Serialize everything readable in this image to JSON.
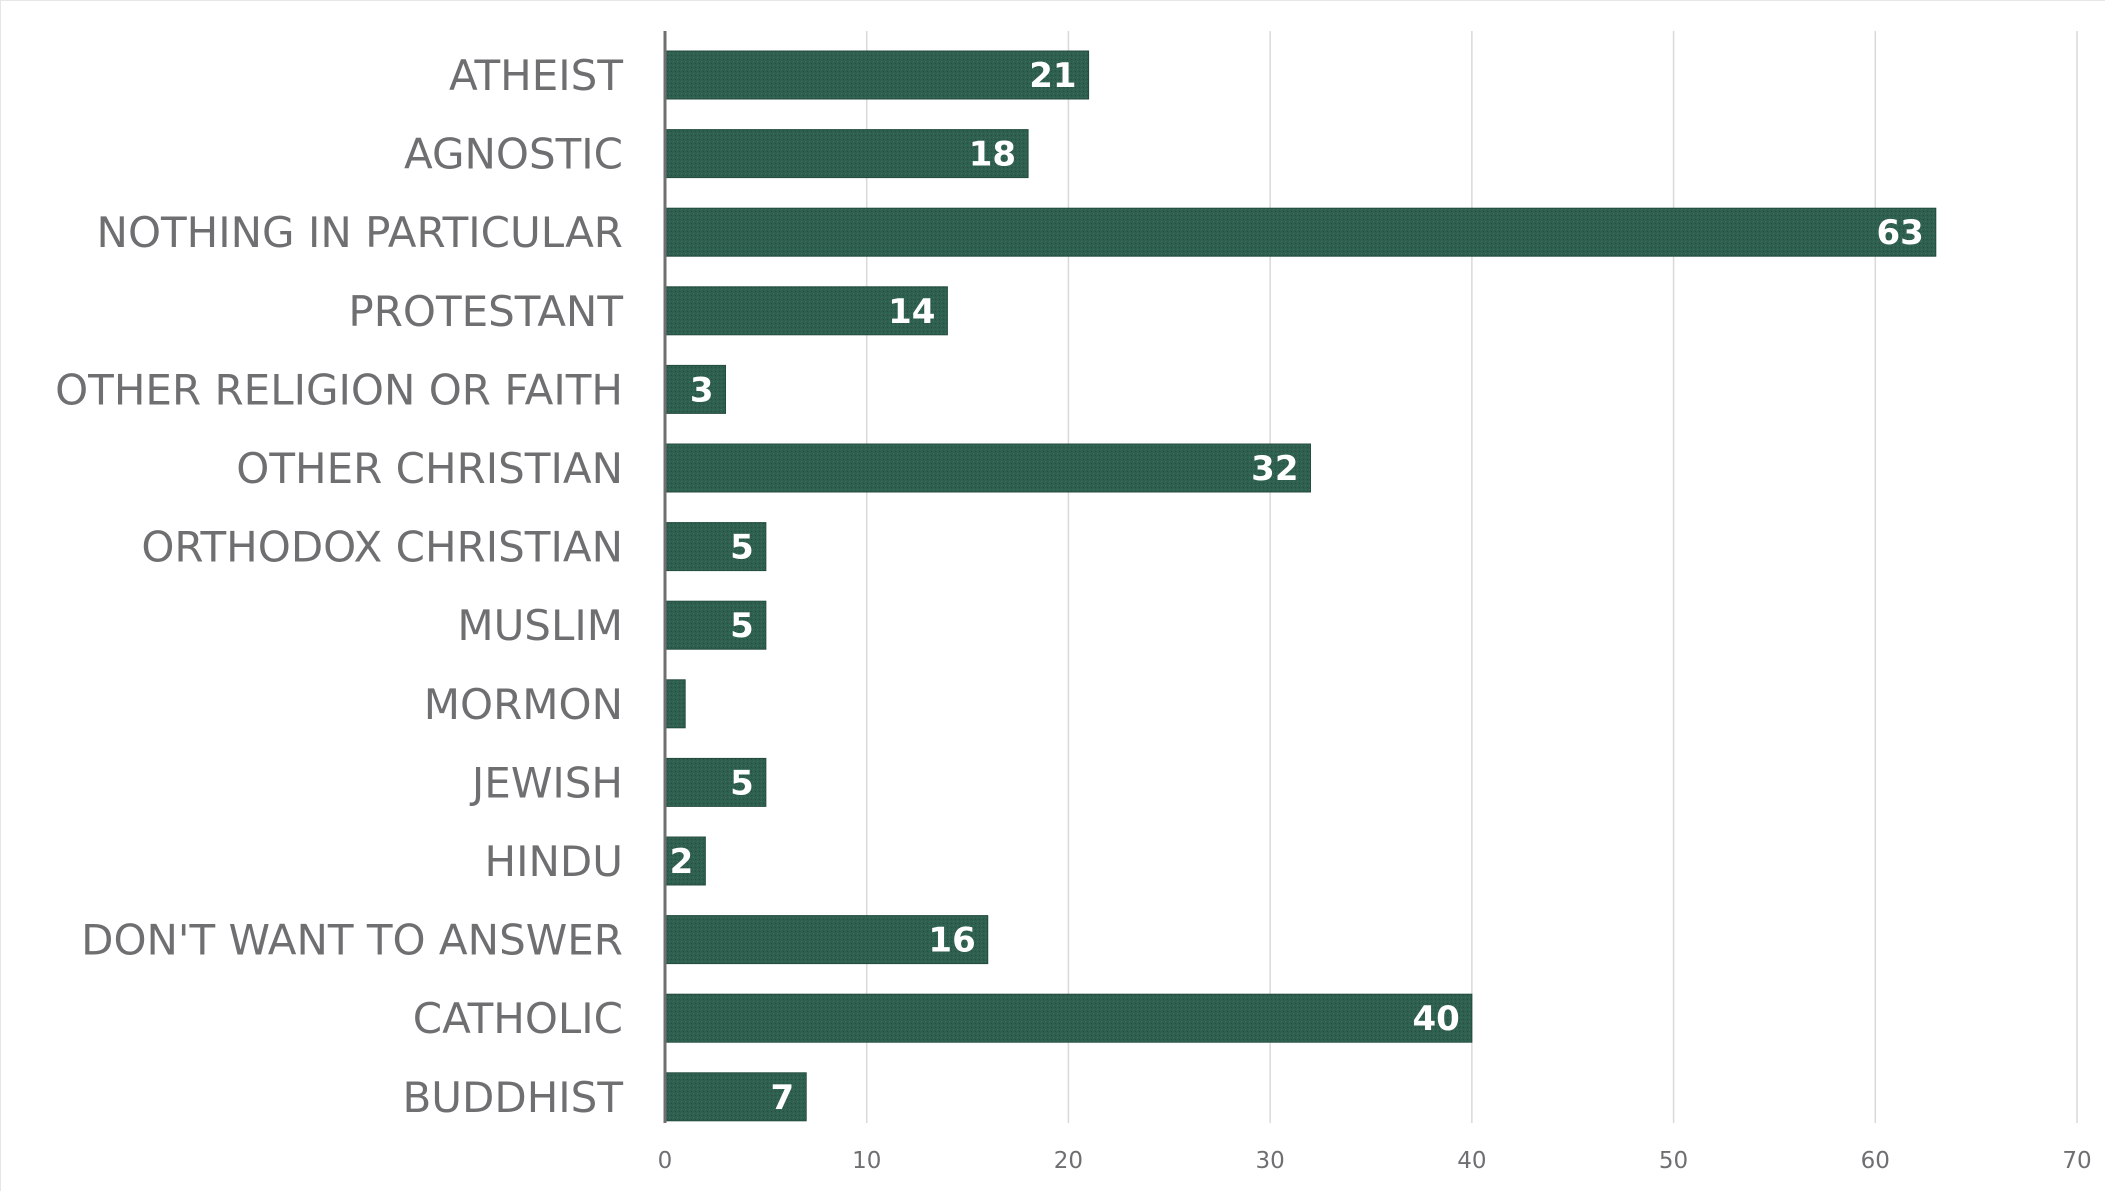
{
  "chart_data": {
    "type": "bar",
    "orientation": "horizontal",
    "categories": [
      "ATHEIST",
      "AGNOSTIC",
      "NOTHING IN PARTICULAR",
      "PROTESTANT",
      "OTHER RELIGION OR FAITH",
      "OTHER CHRISTIAN",
      "ORTHODOX CHRISTIAN",
      "MUSLIM",
      "MORMON",
      "JEWISH",
      "HINDU",
      "DON'T WANT TO ANSWER",
      "CATHOLIC",
      "BUDDHIST"
    ],
    "values": [
      21,
      18,
      63,
      14,
      3,
      32,
      5,
      5,
      1,
      5,
      2,
      16,
      40,
      7
    ],
    "data_labels": [
      "21",
      "18",
      "63",
      "14",
      "3",
      "32",
      "5",
      "5",
      "",
      "5",
      "2",
      "16",
      "40",
      "7"
    ],
    "xlim": [
      0,
      70
    ],
    "xticks": [
      0,
      10,
      20,
      30,
      40,
      50,
      60,
      70
    ],
    "grid": "vertical",
    "legend": "none",
    "bar_color": "#2e5f4f",
    "label_color": "#6f6f72",
    "grid_color": "#d9d9d9",
    "axis_color": "#6f6f72"
  }
}
